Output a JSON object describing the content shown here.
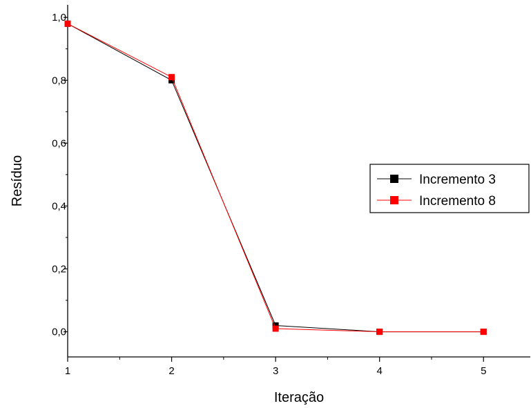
{
  "chart_data": {
    "type": "line",
    "x": [
      1,
      2,
      3,
      4,
      5
    ],
    "series": [
      {
        "name": "Incremento 3",
        "color": "#000000",
        "values": [
          0.98,
          0.8,
          0.02,
          0.0,
          0.0
        ]
      },
      {
        "name": "Incremento 8",
        "color": "#ff0000",
        "values": [
          0.98,
          0.81,
          0.01,
          0.0,
          0.0
        ]
      }
    ],
    "xlabel": "Iteração",
    "ylabel": "Resíduo",
    "xlim": [
      1,
      5.45
    ],
    "ylim": [
      -0.08,
      1.04
    ],
    "xticks": [
      "1",
      "2",
      "3",
      "4",
      "5"
    ],
    "yticks": [
      "0,0",
      "0,2",
      "0,4",
      "0,6",
      "0,8",
      "1,0"
    ],
    "legend_position": "center-right",
    "grid": false,
    "marker": "square"
  }
}
